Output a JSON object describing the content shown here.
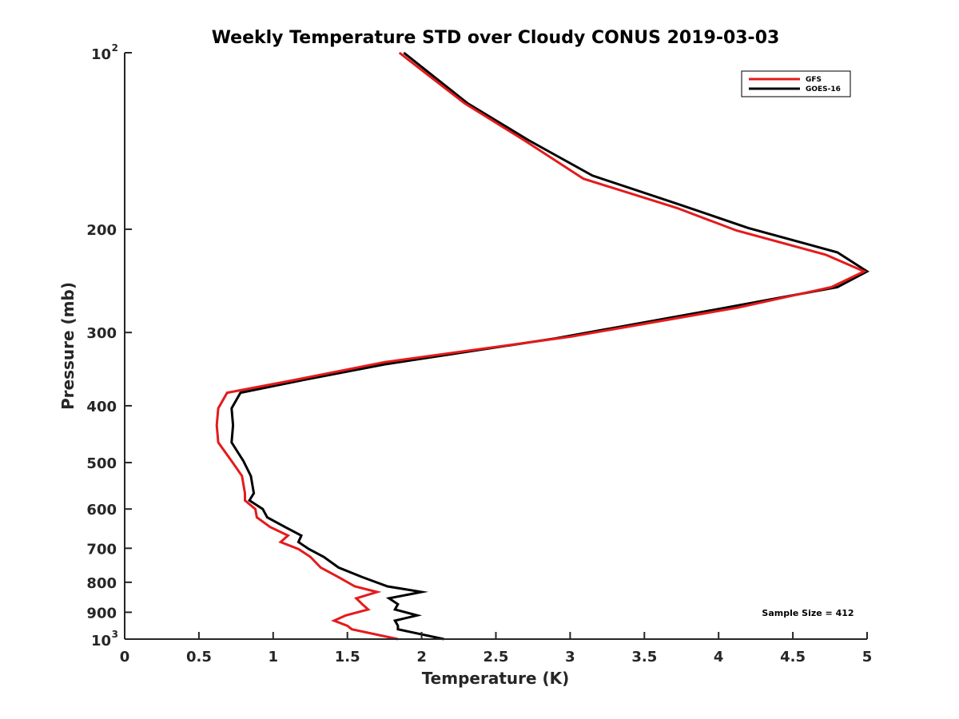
{
  "chart_data": {
    "type": "line",
    "title": "Weekly Temperature STD over Cloudy CONUS 2019-03-03",
    "xlabel": "Temperature (K)",
    "ylabel": "Pressure (mb)",
    "xlim": [
      0,
      5
    ],
    "ylim": [
      100,
      1000
    ],
    "y_scale": "log",
    "y_reversed": true,
    "grid": false,
    "legend_position": "top-right",
    "x_ticks": [
      {
        "value": 0,
        "label": "0"
      },
      {
        "value": 0.5,
        "label": "0.5"
      },
      {
        "value": 1,
        "label": "1"
      },
      {
        "value": 1.5,
        "label": "1.5"
      },
      {
        "value": 2,
        "label": "2"
      },
      {
        "value": 2.5,
        "label": "2.5"
      },
      {
        "value": 3,
        "label": "3"
      },
      {
        "value": 3.5,
        "label": "3.5"
      },
      {
        "value": 4,
        "label": "4"
      },
      {
        "value": 4.5,
        "label": "4.5"
      },
      {
        "value": 5,
        "label": "5"
      }
    ],
    "y_ticks": [
      {
        "value": 100,
        "label": "10",
        "sup": "2"
      },
      {
        "value": 200,
        "label": "200"
      },
      {
        "value": 300,
        "label": "300"
      },
      {
        "value": 400,
        "label": "400"
      },
      {
        "value": 500,
        "label": "500"
      },
      {
        "value": 600,
        "label": "600"
      },
      {
        "value": 700,
        "label": "700"
      },
      {
        "value": 800,
        "label": "800"
      },
      {
        "value": 900,
        "label": "900"
      },
      {
        "value": 1000,
        "label": "10",
        "sup": "3"
      }
    ],
    "series": [
      {
        "name": "GFS",
        "color": "#e41a1c",
        "points": [
          {
            "x": 1.85,
            "y": 100
          },
          {
            "x": 2.29,
            "y": 122
          },
          {
            "x": 2.69,
            "y": 141
          },
          {
            "x": 3.09,
            "y": 164
          },
          {
            "x": 3.72,
            "y": 184
          },
          {
            "x": 4.12,
            "y": 201
          },
          {
            "x": 4.72,
            "y": 221
          },
          {
            "x": 4.98,
            "y": 236
          },
          {
            "x": 4.76,
            "y": 251
          },
          {
            "x": 4.13,
            "y": 272
          },
          {
            "x": 3.0,
            "y": 305
          },
          {
            "x": 1.75,
            "y": 337
          },
          {
            "x": 1.13,
            "y": 362
          },
          {
            "x": 0.69,
            "y": 380
          },
          {
            "x": 0.63,
            "y": 404
          },
          {
            "x": 0.62,
            "y": 432
          },
          {
            "x": 0.63,
            "y": 462
          },
          {
            "x": 0.72,
            "y": 497
          },
          {
            "x": 0.79,
            "y": 527
          },
          {
            "x": 0.81,
            "y": 564
          },
          {
            "x": 0.81,
            "y": 580
          },
          {
            "x": 0.88,
            "y": 600
          },
          {
            "x": 0.89,
            "y": 620
          },
          {
            "x": 0.98,
            "y": 644
          },
          {
            "x": 1.1,
            "y": 666
          },
          {
            "x": 1.05,
            "y": 683
          },
          {
            "x": 1.17,
            "y": 702
          },
          {
            "x": 1.25,
            "y": 724
          },
          {
            "x": 1.32,
            "y": 755
          },
          {
            "x": 1.44,
            "y": 784
          },
          {
            "x": 1.55,
            "y": 813
          },
          {
            "x": 1.7,
            "y": 831
          },
          {
            "x": 1.56,
            "y": 852
          },
          {
            "x": 1.6,
            "y": 872
          },
          {
            "x": 1.64,
            "y": 890
          },
          {
            "x": 1.49,
            "y": 911
          },
          {
            "x": 1.41,
            "y": 930
          },
          {
            "x": 1.5,
            "y": 949
          },
          {
            "x": 1.53,
            "y": 962
          },
          {
            "x": 1.84,
            "y": 1000
          }
        ]
      },
      {
        "name": "GOES-16",
        "color": "#000000",
        "points": [
          {
            "x": 1.88,
            "y": 100
          },
          {
            "x": 2.31,
            "y": 122
          },
          {
            "x": 2.72,
            "y": 141
          },
          {
            "x": 3.15,
            "y": 162
          },
          {
            "x": 3.75,
            "y": 182
          },
          {
            "x": 4.2,
            "y": 199
          },
          {
            "x": 4.8,
            "y": 219
          },
          {
            "x": 5.0,
            "y": 236
          },
          {
            "x": 4.8,
            "y": 251
          },
          {
            "x": 4.02,
            "y": 273
          },
          {
            "x": 2.9,
            "y": 307
          },
          {
            "x": 1.75,
            "y": 340
          },
          {
            "x": 1.19,
            "y": 362
          },
          {
            "x": 0.78,
            "y": 380
          },
          {
            "x": 0.72,
            "y": 404
          },
          {
            "x": 0.73,
            "y": 432
          },
          {
            "x": 0.72,
            "y": 462
          },
          {
            "x": 0.8,
            "y": 497
          },
          {
            "x": 0.85,
            "y": 527
          },
          {
            "x": 0.87,
            "y": 564
          },
          {
            "x": 0.84,
            "y": 580
          },
          {
            "x": 0.93,
            "y": 600
          },
          {
            "x": 0.96,
            "y": 620
          },
          {
            "x": 1.08,
            "y": 644
          },
          {
            "x": 1.19,
            "y": 666
          },
          {
            "x": 1.17,
            "y": 683
          },
          {
            "x": 1.24,
            "y": 702
          },
          {
            "x": 1.34,
            "y": 724
          },
          {
            "x": 1.44,
            "y": 755
          },
          {
            "x": 1.6,
            "y": 784
          },
          {
            "x": 1.77,
            "y": 813
          },
          {
            "x": 2.0,
            "y": 831
          },
          {
            "x": 1.78,
            "y": 852
          },
          {
            "x": 1.84,
            "y": 872
          },
          {
            "x": 1.82,
            "y": 890
          },
          {
            "x": 1.97,
            "y": 911
          },
          {
            "x": 1.82,
            "y": 930
          },
          {
            "x": 1.84,
            "y": 949
          },
          {
            "x": 1.84,
            "y": 962
          },
          {
            "x": 2.15,
            "y": 1000
          }
        ]
      }
    ],
    "annotation": "Sample Size = 412"
  }
}
